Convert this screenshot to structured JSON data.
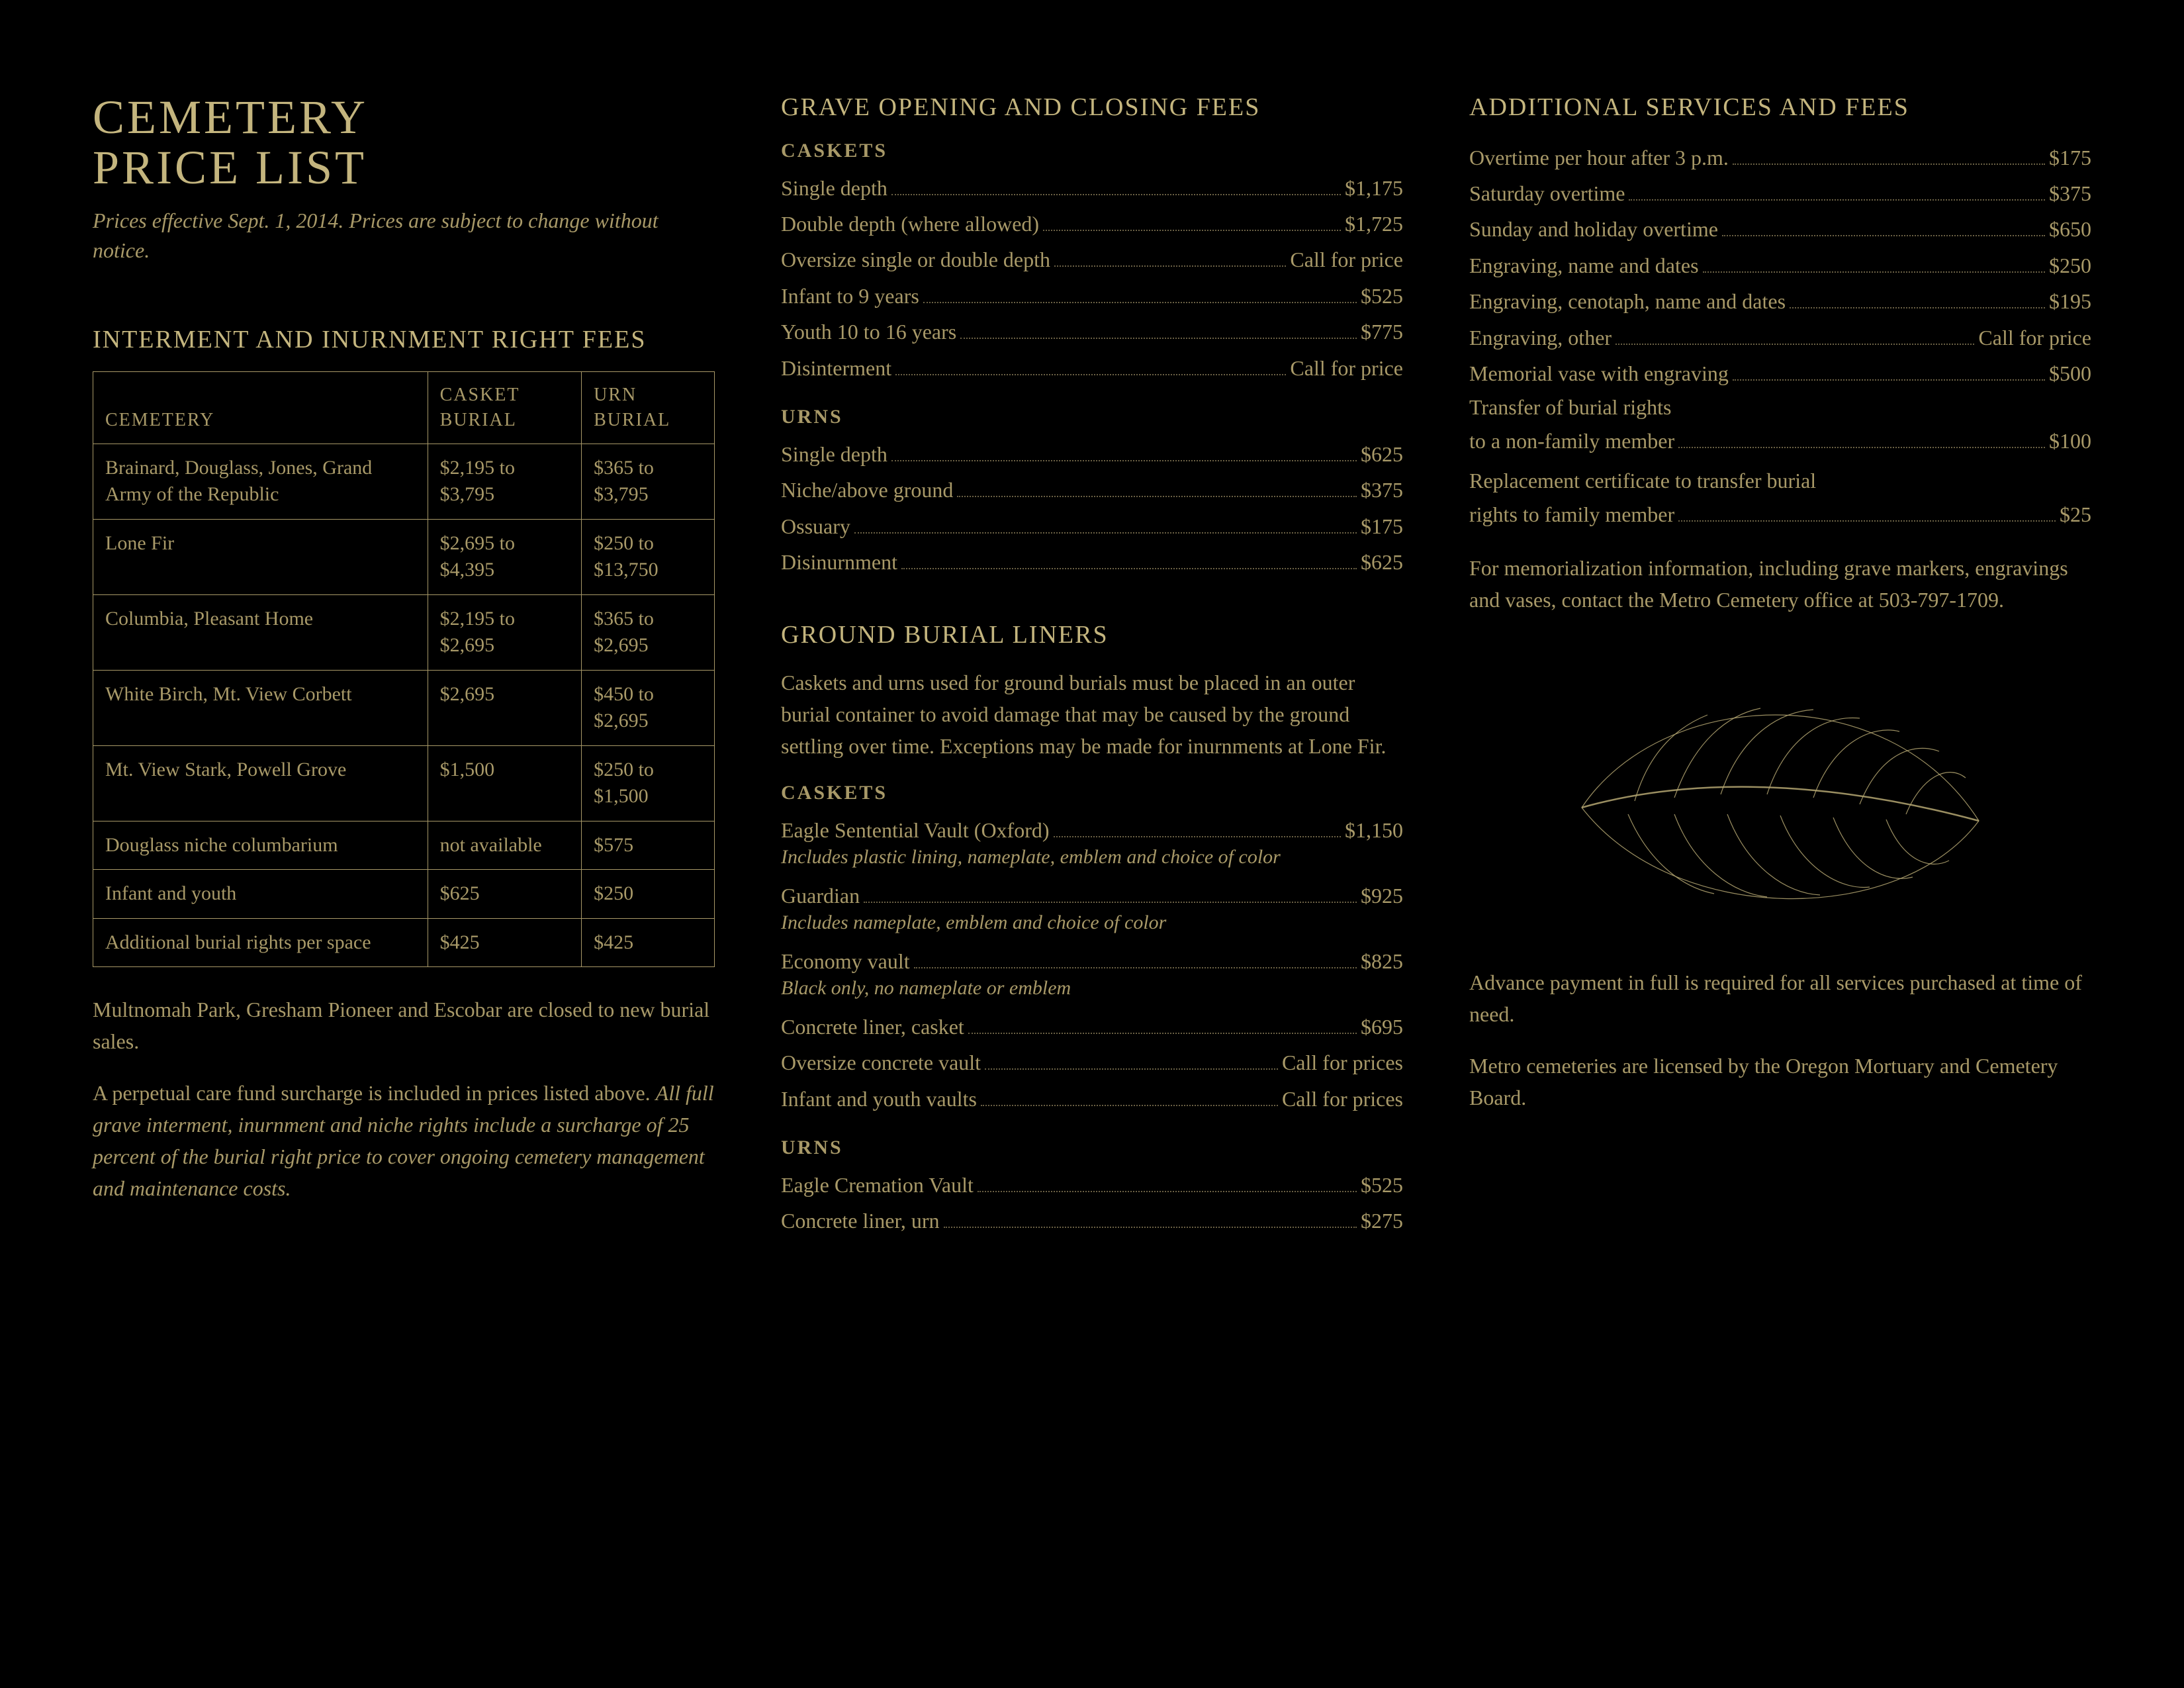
{
  "title_line1": "CEMETERY",
  "title_line2": "PRICE LIST",
  "effective_note": "Prices effective Sept. 1, 2014. Prices are subject to change without notice.",
  "col1": {
    "section_title": "INTERMENT AND INURNMENT RIGHT FEES",
    "headers": {
      "c1": "CEMETERY",
      "c2": "CASKET BURIAL",
      "c3": "URN BURIAL"
    },
    "rows": [
      {
        "c1": "Brainard, Douglass, Jones, Grand Army of the Republic",
        "c2": "$2,195 to $3,795",
        "c3": "$365 to $3,795"
      },
      {
        "c1": "Lone Fir",
        "c2": "$2,695 to $4,395",
        "c3": "$250 to $13,750"
      },
      {
        "c1": "Columbia, Pleasant Home",
        "c2": "$2,195 to $2,695",
        "c3": "$365 to $2,695"
      },
      {
        "c1": "White Birch, Mt. View Corbett",
        "c2": "$2,695",
        "c3": "$450 to $2,695"
      },
      {
        "c1": "Mt. View Stark, Powell Grove",
        "c2": "$1,500",
        "c3": "$250 to $1,500"
      },
      {
        "c1": "Douglass niche columbarium",
        "c2": "not available",
        "c3": "$575"
      },
      {
        "c1": "Infant and youth",
        "c2": "$625",
        "c3": "$250"
      },
      {
        "c1": "Additional burial rights per space",
        "c2": "$425",
        "c3": "$425"
      }
    ],
    "closed_note": "Multnomah Park, Gresham Pioneer and Escobar are closed to new burial sales.",
    "surcharge_plain": "A perpetual care fund surcharge is included in prices listed above. ",
    "surcharge_ital": "All full grave interment, inurnment and niche rights include a surcharge of 25 percent of the burial right price to cover ongoing cemetery management and maintenance costs."
  },
  "col2": {
    "grave_title": "GRAVE OPENING AND CLOSING FEES",
    "caskets_label": "CASKETS",
    "caskets": [
      {
        "label": "Single depth",
        "price": "$1,175"
      },
      {
        "label": "Double depth (where allowed)",
        "price": "$1,725"
      },
      {
        "label": "Oversize single or double depth",
        "price": "Call for price"
      },
      {
        "label": "Infant to 9 years",
        "price": "$525"
      },
      {
        "label": "Youth 10 to 16 years",
        "price": "$775"
      },
      {
        "label": "Disinterment",
        "price": "Call for price"
      }
    ],
    "urns_label": "URNS",
    "urns": [
      {
        "label": "Single depth",
        "price": "$625"
      },
      {
        "label": "Niche/above ground",
        "price": "$375"
      },
      {
        "label": "Ossuary",
        "price": "$175"
      },
      {
        "label": "Disinurnment",
        "price": "$625"
      }
    ],
    "liners_title": "GROUND BURIAL LINERS",
    "liners_intro": "Caskets and urns used for ground burials must be placed in an outer burial container to avoid damage that may be caused by the ground settling over time. Exceptions may be made for inurnments at Lone Fir.",
    "liner_caskets_label": "CASKETS",
    "liner_caskets": [
      {
        "label": "Eagle Sentential Vault (Oxford)",
        "price": "$1,150",
        "sub": "Includes plastic lining, nameplate, emblem and choice of color"
      },
      {
        "label": "Guardian",
        "price": "$925",
        "sub": "Includes nameplate, emblem and choice of color"
      },
      {
        "label": "Economy vault",
        "price": "$825",
        "sub": "Black only, no nameplate or emblem"
      },
      {
        "label": "Concrete liner, casket",
        "price": "$695"
      },
      {
        "label": "Oversize concrete vault",
        "price": "Call for prices"
      },
      {
        "label": "Infant and youth vaults",
        "price": "Call for prices"
      }
    ],
    "liner_urns_label": "URNS",
    "liner_urns": [
      {
        "label": "Eagle Cremation Vault",
        "price": "$525"
      },
      {
        "label": "Concrete liner, urn",
        "price": "$275"
      }
    ]
  },
  "col3": {
    "title": "ADDITIONAL SERVICES AND FEES",
    "items": [
      {
        "label": "Overtime per hour after 3 p.m.",
        "price": "$175"
      },
      {
        "label": "Saturday overtime",
        "price": "$375"
      },
      {
        "label": "Sunday and holiday overtime",
        "price": "$650"
      },
      {
        "label": "Engraving, name and dates",
        "price": "$250"
      },
      {
        "label": "Engraving, cenotaph, name and dates",
        "price": "$195"
      },
      {
        "label": "Engraving, other",
        "price": "Call for price"
      },
      {
        "label": "Memorial vase with engraving",
        "price": "$500"
      }
    ],
    "multi1_line1": "Transfer of burial rights",
    "multi1_line2": "to a non-family member",
    "multi1_price": "$100",
    "multi2_line1": "Replacement certificate to transfer burial",
    "multi2_line2": "rights to family member",
    "multi2_price": "$25",
    "memorialization_note": "For memorialization information, including grave markers, engravings and vases, contact the Metro Cemetery office at 503-797-1709.",
    "advance_note": "Advance payment in full is required for all services purchased at time of need.",
    "license_note": "Metro cemeteries are licensed by the Oregon Mortuary and Cemetery Board."
  }
}
